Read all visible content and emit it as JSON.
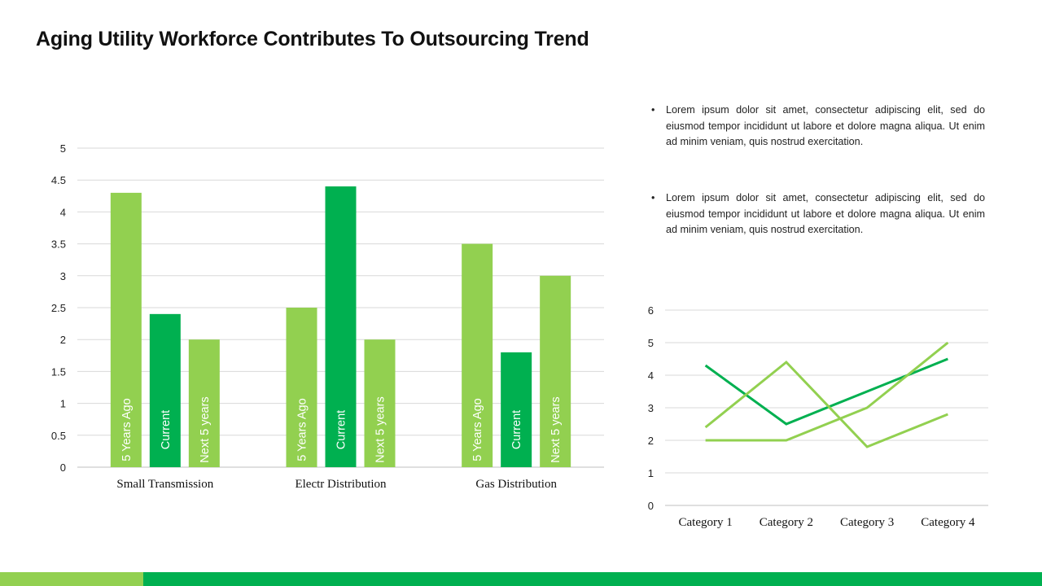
{
  "slide": {
    "title": "Aging Utility Workforce Contributes To Outsourcing Trend",
    "bullets": [
      {
        "symbol": "•",
        "text": "Lorem ipsum dolor sit amet, consectetur adipiscing elit, sed do eiusmod tempor incididunt ut labore et dolore magna aliqua. Ut enim ad minim veniam, quis nostrud exercitation."
      },
      {
        "symbol": "•",
        "text": "Lorem ipsum dolor sit amet, consectetur adipiscing elit, sed do eiusmod tempor incididunt ut labore et dolore magna aliqua. Ut enim ad minim veniam, quis nostrud exercitation."
      }
    ],
    "colors": {
      "light_green": "#92D050",
      "dark_green": "#00B050",
      "grid": "#d9d9d9"
    }
  },
  "chart_data": [
    {
      "type": "bar",
      "title": "",
      "xlabel": "",
      "ylabel": "",
      "categories": [
        "Small Transmission",
        "Electr Distribution",
        "Gas Distribution"
      ],
      "series": [
        {
          "name": "5 Years Ago",
          "values": [
            4.3,
            2.5,
            3.5
          ],
          "color": "#92D050"
        },
        {
          "name": "Current",
          "values": [
            2.4,
            4.4,
            1.8
          ],
          "color": "#00B050"
        },
        {
          "name": "Next 5 years",
          "values": [
            2.0,
            2.0,
            3.0
          ],
          "color": "#92D050"
        }
      ],
      "ylim": [
        0,
        5
      ],
      "yticks": [
        "0",
        "0.5",
        "1",
        "1.5",
        "2",
        "2.5",
        "3",
        "3.5",
        "4",
        "4.5",
        "5"
      ],
      "grid": true,
      "legend": "none",
      "bar_labels": "series name, rotated vertical inside each bar"
    },
    {
      "type": "line",
      "title": "",
      "xlabel": "",
      "ylabel": "",
      "categories": [
        "Category 1",
        "Category 2",
        "Category 3",
        "Category 4"
      ],
      "series": [
        {
          "values": [
            4.3,
            2.5,
            3.5,
            4.5
          ],
          "color": "#00B050"
        },
        {
          "values": [
            2.4,
            4.4,
            1.8,
            2.8
          ],
          "color": "#92D050"
        },
        {
          "values": [
            2.0,
            2.0,
            3.0,
            5.0
          ],
          "color": "#92D050"
        }
      ],
      "ylim": [
        0,
        6
      ],
      "yticks": [
        "0",
        "1",
        "2",
        "3",
        "4",
        "5",
        "6"
      ],
      "grid": true,
      "legend": "none"
    }
  ]
}
